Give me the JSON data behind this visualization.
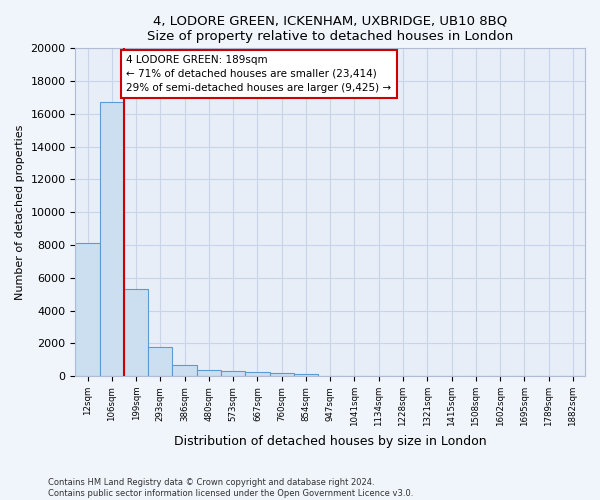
{
  "title1": "4, LODORE GREEN, ICKENHAM, UXBRIDGE, UB10 8BQ",
  "title2": "Size of property relative to detached houses in London",
  "xlabel": "Distribution of detached houses by size in London",
  "ylabel": "Number of detached properties",
  "categories": [
    "12sqm",
    "106sqm",
    "199sqm",
    "293sqm",
    "386sqm",
    "480sqm",
    "573sqm",
    "667sqm",
    "760sqm",
    "854sqm",
    "947sqm",
    "1041sqm",
    "1134sqm",
    "1228sqm",
    "1321sqm",
    "1415sqm",
    "1508sqm",
    "1602sqm",
    "1695sqm",
    "1789sqm",
    "1882sqm"
  ],
  "bar_heights": [
    8100,
    16700,
    5300,
    1750,
    700,
    370,
    280,
    220,
    180,
    130,
    0,
    0,
    0,
    0,
    0,
    0,
    0,
    0,
    0,
    0,
    0
  ],
  "bar_color": "#ccdff0",
  "bar_edge_color": "#5b9bd5",
  "vline_color": "#cc0000",
  "annotation_text": "4 LODORE GREEN: 189sqm\n← 71% of detached houses are smaller (23,414)\n29% of semi-detached houses are larger (9,425) →",
  "annotation_box_color": "#ffffff",
  "annotation_box_edge": "#cc0000",
  "ylim": [
    0,
    20000
  ],
  "yticks": [
    0,
    2000,
    4000,
    6000,
    8000,
    10000,
    12000,
    14000,
    16000,
    18000,
    20000
  ],
  "footer1": "Contains HM Land Registry data © Crown copyright and database right 2024.",
  "footer2": "Contains public sector information licensed under the Open Government Licence v3.0.",
  "bg_color": "#f0f4fb",
  "plot_bg_color": "#e8eef8",
  "grid_color": "#c8d4e8",
  "spine_color": "#b0bcd4"
}
